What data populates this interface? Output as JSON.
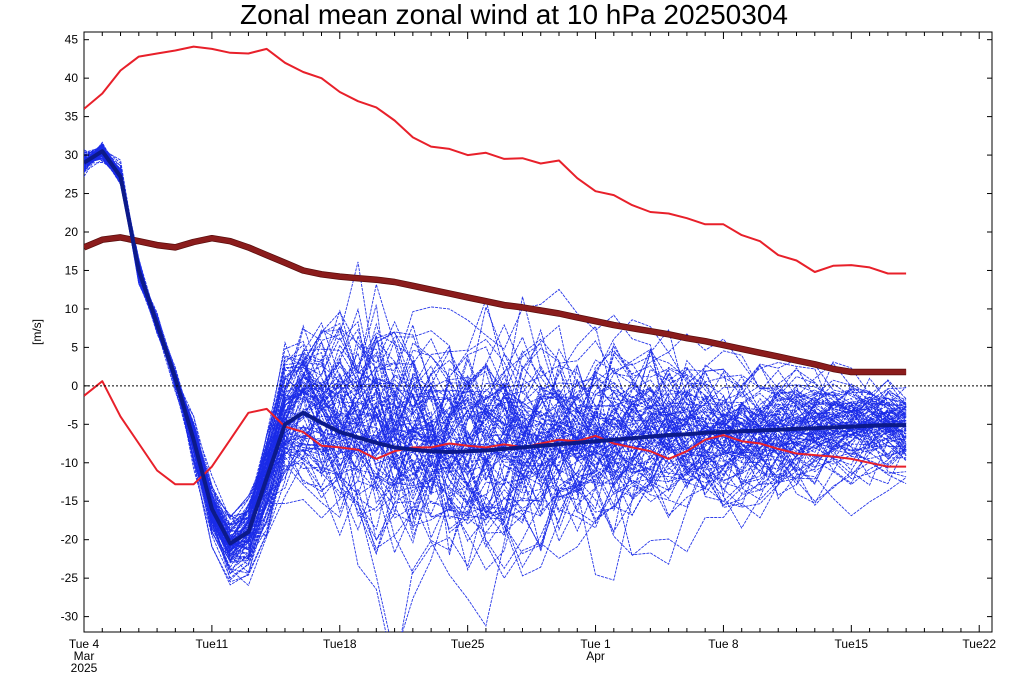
{
  "chart_data": {
    "type": "line",
    "title": "Zonal mean zonal wind at 10 hPa 20250304",
    "ylabel": "[m/s]",
    "xlabel": "",
    "ylim": [
      -32,
      46
    ],
    "xlim_days": [
      0,
      48
    ],
    "y_ticks": [
      45,
      40,
      35,
      30,
      25,
      20,
      15,
      10,
      5,
      0,
      -5,
      -10,
      -15,
      -20,
      -25,
      -30
    ],
    "x_ticks": [
      {
        "day": 0,
        "lines": [
          "Tue 4",
          "Mar",
          "2025"
        ]
      },
      {
        "day": 7,
        "lines": [
          "Tue11"
        ]
      },
      {
        "day": 14,
        "lines": [
          "Tue18"
        ]
      },
      {
        "day": 21,
        "lines": [
          "Tue25"
        ]
      },
      {
        "day": 28,
        "lines": [
          "Tue 1",
          "Apr"
        ]
      },
      {
        "day": 35,
        "lines": [
          "Tue 8"
        ]
      },
      {
        "day": 42,
        "lines": [
          "Tue15"
        ]
      },
      {
        "day": 49,
        "lines": [
          "Tue22"
        ]
      }
    ],
    "zero_line": 0,
    "series": [
      {
        "name": "climatology-max",
        "color": "#e8202a",
        "width": 2,
        "x": [
          0,
          1,
          2,
          3,
          4,
          5,
          6,
          7,
          8,
          9,
          10,
          11,
          12,
          13,
          14,
          15,
          16,
          17,
          18,
          19,
          20,
          21,
          22,
          23,
          24,
          25,
          26,
          27,
          28,
          29,
          30,
          31,
          32,
          33,
          34,
          35,
          36,
          37,
          38,
          39,
          40,
          41,
          42,
          43,
          44,
          45
        ],
        "y": [
          36,
          38,
          41,
          42.8,
          43.2,
          43.6,
          44.1,
          43.8,
          43.3,
          43.2,
          43.8,
          42,
          40.8,
          40,
          38.2,
          37,
          36.2,
          34.5,
          32.3,
          31.1,
          30.8,
          30,
          30.3,
          29.5,
          29.6,
          28.9,
          29.3,
          27,
          25.3,
          24.8,
          23.5,
          22.6,
          22.4,
          21.8,
          21,
          21,
          19.6,
          18.8,
          17,
          16.3,
          14.8,
          15.6,
          15.7,
          15.4,
          14.6,
          14.6
        ]
      },
      {
        "name": "climatology-mean",
        "color": "#8b1c1c",
        "width": 5,
        "x": [
          0,
          1,
          2,
          3,
          4,
          5,
          6,
          7,
          8,
          9,
          10,
          11,
          12,
          13,
          14,
          15,
          16,
          17,
          18,
          19,
          20,
          21,
          22,
          23,
          24,
          25,
          26,
          27,
          28,
          29,
          30,
          31,
          32,
          33,
          34,
          35,
          36,
          37,
          38,
          39,
          40,
          41,
          42,
          43,
          44,
          45
        ],
        "y": [
          18,
          19,
          19.3,
          18.8,
          18.3,
          18,
          18.7,
          19.2,
          18.8,
          18,
          17,
          16,
          15,
          14.5,
          14.2,
          14,
          13.8,
          13.5,
          13,
          12.5,
          12,
          11.5,
          11,
          10.5,
          10.2,
          9.8,
          9.4,
          8.9,
          8.4,
          7.9,
          7.5,
          7.1,
          6.7,
          6.2,
          5.8,
          5.3,
          4.8,
          4.3,
          3.8,
          3.3,
          2.8,
          2.2,
          1.8,
          1.8,
          1.8,
          1.8
        ]
      },
      {
        "name": "climatology-min",
        "color": "#e8202a",
        "width": 2,
        "x": [
          0,
          1,
          2,
          3,
          4,
          5,
          6,
          7,
          8,
          9,
          10,
          11,
          12,
          13,
          14,
          15,
          16,
          17,
          18,
          19,
          20,
          21,
          22,
          23,
          24,
          25,
          26,
          27,
          28,
          29,
          30,
          31,
          32,
          33,
          34,
          35,
          36,
          37,
          38,
          39,
          40,
          41,
          42,
          43,
          44,
          45
        ],
        "y": [
          -1.3,
          0.6,
          -4,
          -7.5,
          -11,
          -12.8,
          -12.8,
          -10.5,
          -7,
          -3.5,
          -3,
          -5.3,
          -6,
          -7.8,
          -8,
          -8.3,
          -9.5,
          -8.5,
          -8,
          -8,
          -7.5,
          -7.8,
          -8,
          -7.6,
          -8,
          -7.5,
          -7,
          -7.2,
          -6.5,
          -7.5,
          -8,
          -8.5,
          -9.5,
          -8.5,
          -7,
          -6.4,
          -7.2,
          -7.5,
          -8.2,
          -8.8,
          -9,
          -9.2,
          -9.5,
          -10,
          -10.5,
          -10.5
        ]
      },
      {
        "name": "ensemble-mean",
        "color": "#0c1a8a",
        "width": 4,
        "x": [
          0,
          1,
          2,
          3,
          4,
          5,
          6,
          7,
          8,
          9,
          10,
          11,
          12,
          13,
          14,
          15,
          16,
          17,
          18,
          19,
          20,
          21,
          22,
          23,
          24,
          25,
          26,
          27,
          28,
          29,
          30,
          31,
          32,
          33,
          34,
          35,
          36,
          37,
          38,
          39,
          40,
          41,
          42,
          43,
          44,
          45
        ],
        "y": [
          29,
          30.5,
          27.2,
          15,
          8,
          1,
          -7,
          -16,
          -20.5,
          -19,
          -12,
          -5,
          -3.5,
          -4.8,
          -6,
          -6.7,
          -7.4,
          -8,
          -8.3,
          -8.5,
          -8.6,
          -8.5,
          -8.4,
          -8.2,
          -8,
          -7.8,
          -7.6,
          -7.4,
          -7.2,
          -7,
          -6.8,
          -6.6,
          -6.4,
          -6.3,
          -6.1,
          -6,
          -5.9,
          -5.8,
          -5.7,
          -5.6,
          -5.5,
          -5.4,
          -5.3,
          -5.2,
          -5.1,
          -5.1
        ]
      }
    ],
    "ensemble": {
      "name": "ensemble-members",
      "color": "#1a2be8",
      "count": 100,
      "init_days": [
        0,
        1,
        2,
        3,
        4,
        5
      ],
      "init_values": [
        29,
        30.5,
        27.2,
        15,
        8,
        1
      ],
      "spread_days": [
        6,
        7,
        8,
        9,
        10,
        11,
        12,
        13,
        14,
        15,
        16,
        17,
        18,
        19,
        20,
        21,
        22,
        23,
        24,
        25,
        26,
        27,
        28,
        29,
        30,
        31,
        32,
        33,
        34,
        35,
        36,
        37,
        38,
        39,
        40,
        41,
        42,
        43,
        44,
        45
      ],
      "spread_mean": [
        -7,
        -16,
        -20.5,
        -19,
        -12,
        -5,
        -3.5,
        -4.8,
        -6,
        -6.7,
        -7.4,
        -8,
        -8.3,
        -8.5,
        -8.6,
        -8.5,
        -8.4,
        -8.2,
        -8,
        -7.8,
        -7.6,
        -7.4,
        -7.2,
        -7,
        -6.8,
        -6.6,
        -6.4,
        -6.3,
        -6.1,
        -6,
        -5.9,
        -5.8,
        -5.7,
        -5.6,
        -5.5,
        -5.4,
        -5.3,
        -5.2,
        -5.1,
        -5.1
      ],
      "spread_sd": [
        1.5,
        2,
        2.5,
        3,
        4,
        5,
        6,
        7,
        8,
        8.5,
        9,
        9,
        9,
        9,
        9,
        8.8,
        8.5,
        8.3,
        8,
        7.8,
        7.5,
        7.2,
        7,
        6.8,
        6.5,
        6.2,
        6,
        5.8,
        5.5,
        5.2,
        5,
        4.8,
        4.5,
        4.3,
        4,
        3.8,
        3.6,
        3.4,
        3.3,
        3.2
      ]
    }
  }
}
